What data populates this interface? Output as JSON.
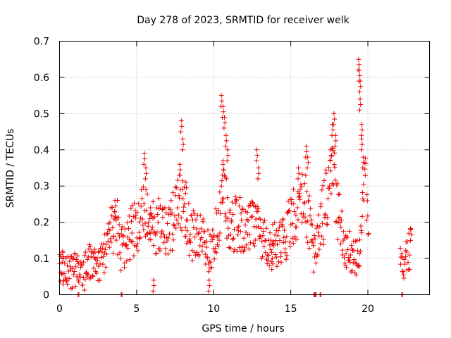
{
  "chart_data": {
    "type": "scatter",
    "title": "Day 278 of 2023, SRMTID for receiver welk",
    "xlabel": "GPS time / hours",
    "ylabel": "SRMTID / TECUs",
    "xlim": [
      0,
      24
    ],
    "ylim": [
      0,
      0.7
    ],
    "x_ticks": [
      0,
      5,
      10,
      15,
      20
    ],
    "y_ticks": [
      0,
      0.1,
      0.2,
      0.3,
      0.4,
      0.5,
      0.6,
      0.7
    ],
    "x_tick_labels": [
      "0",
      "5",
      "10",
      "15",
      "20"
    ],
    "y_tick_labels": [
      "0",
      "0.1",
      "0.2",
      "0.3",
      "0.4",
      "0.5",
      "0.6",
      "0.7"
    ],
    "grid": true,
    "marker": "+",
    "color": "#ee0000",
    "series": [
      {
        "name": "SRMTID",
        "profile": [
          [
            0.0,
            0.1
          ],
          [
            0.3,
            0.06
          ],
          [
            0.7,
            0.06
          ],
          [
            1.0,
            0.065
          ],
          [
            1.3,
            0.07
          ],
          [
            1.6,
            0.06
          ],
          [
            1.9,
            0.09
          ],
          [
            2.3,
            0.08
          ],
          [
            2.7,
            0.09
          ],
          [
            3.0,
            0.13
          ],
          [
            3.4,
            0.18
          ],
          [
            3.7,
            0.22
          ],
          [
            3.9,
            0.12
          ],
          [
            4.2,
            0.14
          ],
          [
            4.6,
            0.17
          ],
          [
            5.0,
            0.19
          ],
          [
            5.4,
            0.22
          ],
          [
            5.8,
            0.22
          ],
          [
            6.1,
            0.18
          ],
          [
            6.5,
            0.2
          ],
          [
            6.9,
            0.17
          ],
          [
            7.3,
            0.2
          ],
          [
            7.7,
            0.24
          ],
          [
            8.1,
            0.25
          ],
          [
            8.5,
            0.16
          ],
          [
            8.9,
            0.17
          ],
          [
            9.2,
            0.16
          ],
          [
            9.6,
            0.12
          ],
          [
            10.0,
            0.15
          ],
          [
            10.3,
            0.2
          ],
          [
            10.6,
            0.3
          ],
          [
            10.9,
            0.22
          ],
          [
            11.2,
            0.19
          ],
          [
            11.6,
            0.2
          ],
          [
            12.0,
            0.19
          ],
          [
            12.4,
            0.2
          ],
          [
            12.7,
            0.21
          ],
          [
            13.1,
            0.15
          ],
          [
            13.5,
            0.13
          ],
          [
            13.9,
            0.14
          ],
          [
            14.3,
            0.14
          ],
          [
            14.7,
            0.17
          ],
          [
            15.1,
            0.21
          ],
          [
            15.5,
            0.23
          ],
          [
            15.9,
            0.27
          ],
          [
            16.2,
            0.2
          ],
          [
            16.5,
            0.12
          ],
          [
            16.8,
            0.2
          ],
          [
            17.1,
            0.22
          ],
          [
            17.4,
            0.29
          ],
          [
            17.8,
            0.33
          ],
          [
            18.1,
            0.21
          ],
          [
            18.5,
            0.15
          ],
          [
            18.8,
            0.12
          ],
          [
            19.1,
            0.11
          ],
          [
            19.4,
            0.11
          ],
          [
            19.7,
            0.33
          ],
          [
            19.95,
            0.25
          ],
          [
            20.05,
            0.2
          ]
        ],
        "profile2": [
          [
            22.1,
            0.08
          ],
          [
            22.4,
            0.1
          ],
          [
            22.7,
            0.13
          ],
          [
            22.8,
            0.12
          ]
        ],
        "spikes": [
          [
            0.2,
            0.12
          ],
          [
            3.6,
            0.26
          ],
          [
            5.5,
            0.39
          ],
          [
            5.6,
            0.35
          ],
          [
            5.9,
            0.24
          ],
          [
            7.9,
            0.48
          ],
          [
            8.0,
            0.43
          ],
          [
            7.8,
            0.36
          ],
          [
            8.2,
            0.31
          ],
          [
            10.5,
            0.55
          ],
          [
            10.6,
            0.52
          ],
          [
            10.7,
            0.49
          ],
          [
            10.8,
            0.44
          ],
          [
            10.9,
            0.4
          ],
          [
            10.6,
            0.36
          ],
          [
            12.8,
            0.4
          ],
          [
            12.9,
            0.35
          ],
          [
            15.5,
            0.35
          ],
          [
            16.0,
            0.41
          ],
          [
            16.1,
            0.38
          ],
          [
            17.7,
            0.47
          ],
          [
            17.8,
            0.5
          ],
          [
            17.9,
            0.44
          ],
          [
            17.6,
            0.4
          ],
          [
            19.4,
            0.65
          ],
          [
            19.45,
            0.62
          ],
          [
            19.5,
            0.59
          ],
          [
            19.5,
            0.54
          ],
          [
            19.6,
            0.47
          ],
          [
            19.6,
            0.43
          ],
          [
            19.7,
            0.38
          ],
          [
            9.7,
            0.04
          ],
          [
            6.1,
            0.04
          ],
          [
            13.8,
            0.1
          ],
          [
            22.8,
            0.18
          ]
        ],
        "zeros": [
          1.2,
          4.0,
          16.5,
          16.6,
          16.9,
          22.2
        ]
      }
    ]
  }
}
